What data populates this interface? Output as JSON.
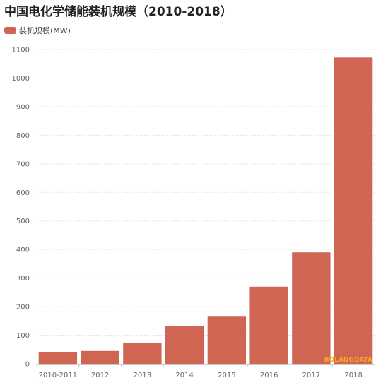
{
  "title": "中国电化学储能装机规模（2010-2018）",
  "colors": {
    "bar": "#d06554",
    "grid": "#e3e3e3",
    "axis": "#cccccc",
    "watermark": "#f5a623"
  },
  "watermark_text": "BOLANGDATA",
  "chart_data": {
    "type": "bar",
    "title": "中国电化学储能装机规模（2010-2018）",
    "xlabel": "",
    "ylabel": "",
    "categories": [
      "2010-2011",
      "2012",
      "2013",
      "2014",
      "2015",
      "2016",
      "2017",
      "2018"
    ],
    "series": [
      {
        "name": "装机规模(MW)",
        "values": [
          42,
          45,
          72,
          133,
          165,
          270,
          390,
          1072
        ]
      }
    ],
    "ylim": [
      0,
      1100
    ],
    "yticks": [
      0,
      100,
      200,
      300,
      400,
      500,
      600,
      700,
      800,
      900,
      1000,
      1100
    ],
    "grid": true,
    "legend_position": "top-left"
  }
}
